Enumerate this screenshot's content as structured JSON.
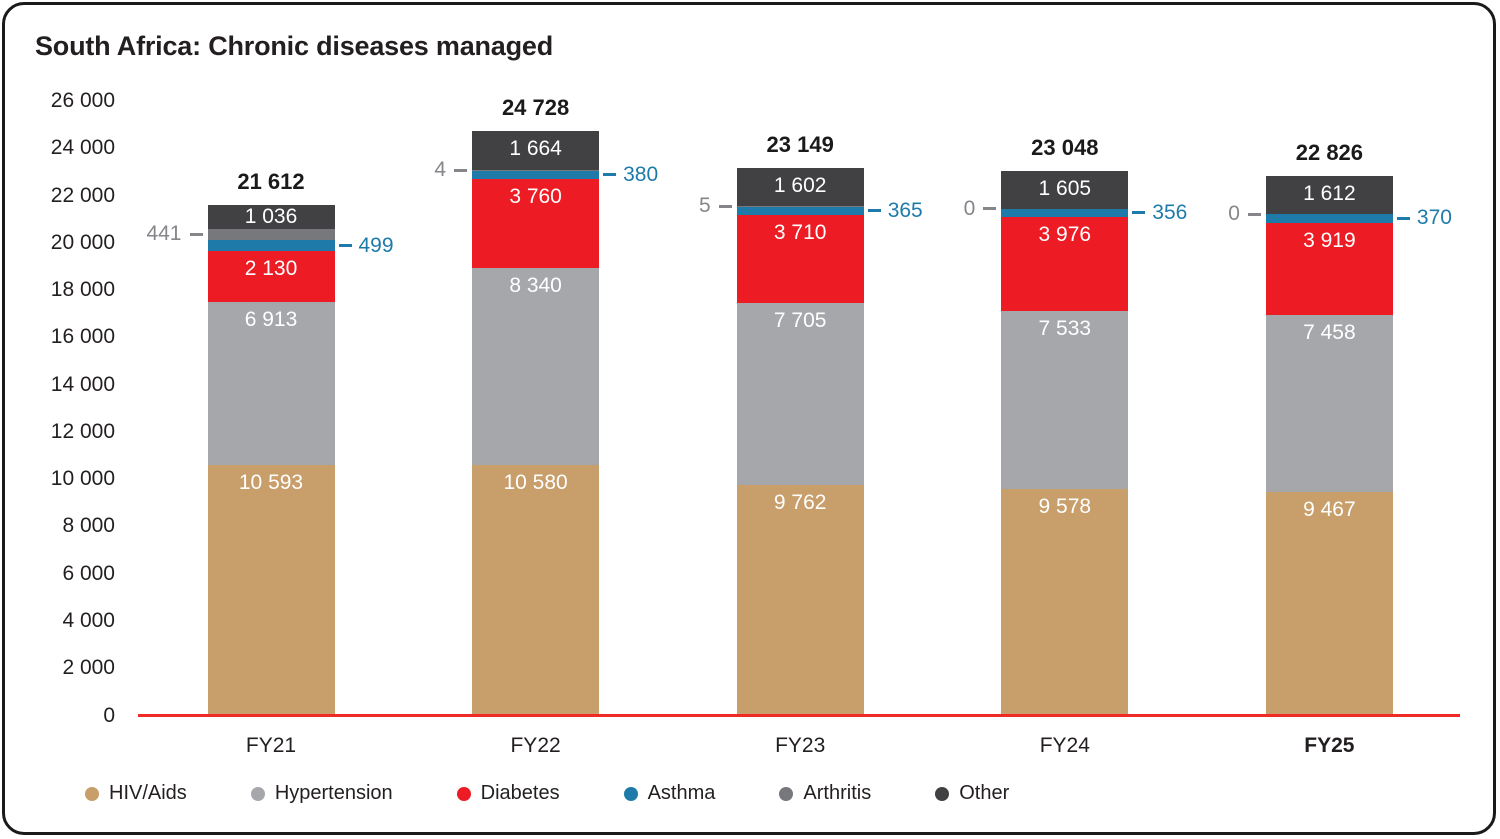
{
  "chart_data": {
    "type": "bar",
    "stacked": true,
    "title": "South Africa: Chronic diseases managed",
    "categories": [
      "FY21",
      "FY22",
      "FY23",
      "FY24",
      "FY25"
    ],
    "emphasis_category": "FY25",
    "series": [
      {
        "name": "HIV/Aids",
        "color": "#c89e6a",
        "values": [
          10593,
          10580,
          9762,
          9578,
          9467
        ]
      },
      {
        "name": "Hypertension",
        "color": "#a5a7aa",
        "values": [
          6913,
          8340,
          7705,
          7533,
          7458
        ]
      },
      {
        "name": "Diabetes",
        "color": "#ed1c24",
        "values": [
          2130,
          3760,
          3710,
          3976,
          3919
        ]
      },
      {
        "name": "Asthma",
        "color": "#1e7ba9",
        "values": [
          499,
          380,
          365,
          356,
          370
        ]
      },
      {
        "name": "Arthritis",
        "color": "#77787b",
        "values": [
          441,
          4,
          5,
          0,
          0
        ]
      },
      {
        "name": "Other",
        "color": "#414042",
        "values": [
          1036,
          1664,
          1602,
          1605,
          1612
        ]
      }
    ],
    "totals": [
      21612,
      24728,
      23149,
      23048,
      22826
    ],
    "annotations": {
      "left_series": "Arthritis",
      "left_labels": [
        "441",
        "4",
        "5",
        "0",
        "0"
      ],
      "left_color": "#848689",
      "right_series": "Asthma",
      "right_labels": [
        "499",
        "380",
        "365",
        "356",
        "370"
      ],
      "right_color": "#1e7ba9"
    },
    "ylim": [
      0,
      26000
    ],
    "ytick_step": 2000,
    "ytick_labels": [
      "0",
      "2 000",
      "4 000",
      "6 000",
      "8 000",
      "10 000",
      "12 000",
      "14 000",
      "16 000",
      "18 000",
      "20 000",
      "22 000",
      "24 000",
      "26 000"
    ],
    "grid": false,
    "legend_position": "bottom",
    "axis_line_color": "#ee2b25"
  }
}
